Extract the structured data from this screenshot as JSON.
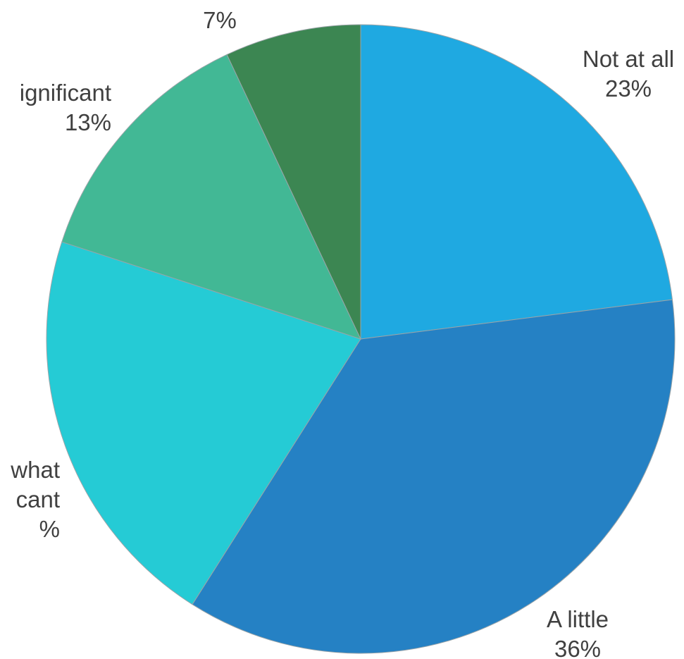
{
  "chart_data": {
    "type": "pie",
    "title": "",
    "start_angle_deg": 0,
    "direction": "clockwise",
    "slices": [
      {
        "label": "Not at all",
        "value": 23,
        "value_label": "23%",
        "color": "#1fa9e1"
      },
      {
        "label": "A little",
        "value": 36,
        "value_label": "36%",
        "color": "#2581c4"
      },
      {
        "label": "what\ncant",
        "value": 21,
        "value_label": "%",
        "color": "#25cbd5"
      },
      {
        "label": "ignificant",
        "value": 13,
        "value_label": "13%",
        "color": "#42b895"
      },
      {
        "label": "",
        "value": 7,
        "value_label": "7%",
        "color": "#3c8652"
      }
    ]
  }
}
